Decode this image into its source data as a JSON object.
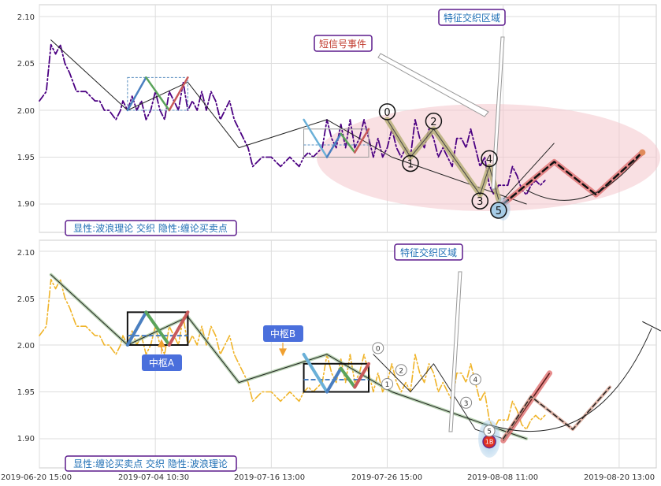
{
  "chart_data": [
    {
      "type": "line",
      "panel": "top",
      "ylim": [
        1.87,
        2.12
      ],
      "yticks": [
        "2.10",
        "2.05",
        "2.00",
        "1.95",
        "1.90"
      ],
      "caption": "显性:波浪理论 交织 隐性:缠论买卖点",
      "annotations": {
        "feature_zone": "特征交织区域",
        "signal_event": "短信号事件"
      },
      "wave_labels": [
        "0",
        "1",
        "2",
        "3",
        "4",
        "5"
      ],
      "colors": {
        "price": "#4b0082",
        "zone": "#f4c6cc",
        "caption_border": "#5b1a8c",
        "caption_text": "#1f6fb5"
      }
    },
    {
      "type": "line",
      "panel": "bottom",
      "ylim": [
        1.87,
        2.12
      ],
      "yticks": [
        "2.10",
        "2.05",
        "2.00",
        "1.95",
        "1.90"
      ],
      "caption": "显性:缠论买卖点 交织 隐性:波浪理论",
      "annotations": {
        "feature_zone": "特征交织区域",
        "pivot_a": "中枢A",
        "pivot_b": "中枢B",
        "buy_point": "1B"
      },
      "wave_labels": [
        "0",
        "1",
        "2",
        "3",
        "4",
        "5"
      ],
      "colors": {
        "price": "#f0b429",
        "pivot_label_bg": "#4a6fdc"
      }
    }
  ],
  "x_ticks": [
    "2019-06-20 15:00",
    "2019-07-04 10:30",
    "2019-07-16 13:00",
    "2019-07-26 15:00",
    "2019-08-08 11:00",
    "2019-08-20 13:00"
  ],
  "price_series": [
    [
      0,
      2.01
    ],
    [
      1.5,
      2.02
    ],
    [
      2.5,
      2.07
    ],
    [
      3.5,
      2.06
    ],
    [
      4.5,
      2.07
    ],
    [
      5.5,
      2.05
    ],
    [
      6.5,
      2.04
    ],
    [
      8,
      2.02
    ],
    [
      10,
      2.02
    ],
    [
      12,
      2.01
    ],
    [
      13,
      2.01
    ],
    [
      14,
      2.0
    ],
    [
      15,
      2.0
    ],
    [
      16.5,
      1.99
    ],
    [
      17.5,
      2.0
    ],
    [
      18,
      2.01
    ],
    [
      19,
      2.0
    ],
    [
      20,
      2.015
    ],
    [
      21,
      2.0
    ],
    [
      22,
      2.01
    ],
    [
      23,
      1.99
    ],
    [
      24,
      2.0
    ],
    [
      25,
      2.02
    ],
    [
      26,
      2.0
    ],
    [
      27,
      1.99
    ],
    [
      28,
      2.02
    ],
    [
      29,
      2.01
    ],
    [
      30,
      2.0
    ],
    [
      31,
      2.03
    ],
    [
      32,
      2.0
    ],
    [
      33,
      2.01
    ],
    [
      34,
      2.0
    ],
    [
      35,
      2.02
    ],
    [
      36,
      2.0
    ],
    [
      37,
      2.02
    ],
    [
      38,
      2.01
    ],
    [
      39,
      1.99
    ],
    [
      40,
      2.0
    ],
    [
      41,
      2.01
    ],
    [
      42,
      1.99
    ],
    [
      43,
      1.98
    ],
    [
      44,
      1.97
    ],
    [
      45,
      1.96
    ],
    [
      46,
      1.94
    ],
    [
      48,
      1.95
    ],
    [
      50,
      1.95
    ],
    [
      52,
      1.94
    ],
    [
      54,
      1.95
    ],
    [
      56,
      1.94
    ],
    [
      57,
      1.95
    ],
    [
      58,
      1.955
    ],
    [
      59,
      1.95
    ],
    [
      60,
      1.955
    ],
    [
      61,
      1.96
    ],
    [
      62,
      1.99
    ],
    [
      63,
      1.97
    ],
    [
      64,
      1.96
    ],
    [
      65,
      1.985
    ],
    [
      66,
      1.96
    ],
    [
      67,
      1.99
    ],
    [
      68,
      1.96
    ],
    [
      69,
      1.97
    ],
    [
      70,
      1.99
    ],
    [
      71,
      1.97
    ],
    [
      72,
      1.95
    ],
    [
      73,
      1.97
    ],
    [
      74,
      1.95
    ],
    [
      75,
      1.96
    ],
    [
      76,
      1.98
    ],
    [
      77,
      1.96
    ],
    [
      78,
      1.95
    ],
    [
      79,
      1.96
    ],
    [
      80,
      1.95
    ],
    [
      81,
      1.99
    ],
    [
      82,
      1.97
    ],
    [
      83,
      1.96
    ],
    [
      84,
      1.98
    ],
    [
      85,
      1.97
    ],
    [
      86,
      1.95
    ],
    [
      87,
      1.96
    ],
    [
      88,
      1.95
    ],
    [
      89,
      1.94
    ],
    [
      90,
      1.97
    ],
    [
      91,
      1.97
    ],
    [
      92,
      1.96
    ],
    [
      93,
      1.98
    ],
    [
      94,
      1.96
    ],
    [
      95,
      1.94
    ],
    [
      96,
      1.95
    ],
    [
      97,
      1.92
    ],
    [
      98,
      1.91
    ],
    [
      99,
      1.92
    ],
    [
      100,
      1.92
    ],
    [
      101,
      1.92
    ],
    [
      102,
      1.94
    ],
    [
      103,
      1.93
    ],
    [
      104,
      1.915
    ],
    [
      105,
      1.91
    ],
    [
      106,
      1.92
    ],
    [
      107,
      1.925
    ],
    [
      108,
      1.92
    ],
    [
      109,
      1.925
    ]
  ],
  "trend_line": [
    [
      2.5,
      2.075
    ],
    [
      19,
      2.0
    ],
    [
      32,
      2.03
    ],
    [
      43,
      1.96
    ],
    [
      62,
      1.99
    ],
    [
      76,
      1.95
    ],
    [
      105,
      1.9
    ]
  ],
  "pivot_a": {
    "x0": 19,
    "x1": 32,
    "y0": 2.0,
    "y1": 2.035,
    "inner_y": 2.01
  },
  "pivot_b": {
    "x0": 57,
    "x1": 71,
    "y0": 1.95,
    "y1": 1.98,
    "inner_y": 1.963
  },
  "pivot_a_zigzag": [
    [
      19,
      2.0
    ],
    [
      23,
      2.035
    ],
    [
      28,
      2.0
    ],
    [
      32,
      2.035
    ]
  ],
  "pivot_b_zigzag": [
    [
      57,
      1.99
    ],
    [
      62,
      1.95
    ],
    [
      65,
      1.975
    ],
    [
      68,
      1.955
    ],
    [
      71,
      1.98
    ]
  ],
  "wave_path": [
    [
      75,
      1.99
    ],
    [
      80,
      1.95
    ],
    [
      85,
      1.98
    ],
    [
      95,
      1.91
    ],
    [
      97,
      1.94
    ],
    [
      99,
      1.905
    ]
  ],
  "waves_top": [
    [
      75,
      1.99
    ],
    [
      80,
      1.95
    ],
    [
      85,
      1.98
    ],
    [
      95,
      1.91
    ],
    [
      97,
      1.94
    ],
    [
      99,
      1.9
    ]
  ],
  "waves_bottom": [
    [
      73,
      1.99
    ],
    [
      75,
      1.95
    ],
    [
      78,
      1.98
    ],
    [
      92,
      1.93
    ],
    [
      94,
      1.97
    ],
    [
      97,
      1.9
    ]
  ],
  "projection_top": [
    [
      100,
      1.9
    ],
    [
      111,
      1.945
    ],
    [
      120,
      1.91
    ],
    [
      130,
      1.955
    ]
  ],
  "projection_bottom": [
    [
      100,
      1.9
    ],
    [
      106,
      1.945
    ],
    [
      115,
      1.91
    ],
    [
      123,
      1.955
    ]
  ],
  "bottom_zone": [
    [
      72,
      1.99
    ],
    [
      80,
      1.95
    ],
    [
      85,
      1.98
    ],
    [
      94,
      1.91
    ],
    [
      100,
      1.9
    ],
    [
      106,
      1.945
    ]
  ],
  "x_index_range": [
    0,
    133
  ],
  "tick_index": [
    0,
    25,
    50,
    75,
    100,
    125
  ]
}
